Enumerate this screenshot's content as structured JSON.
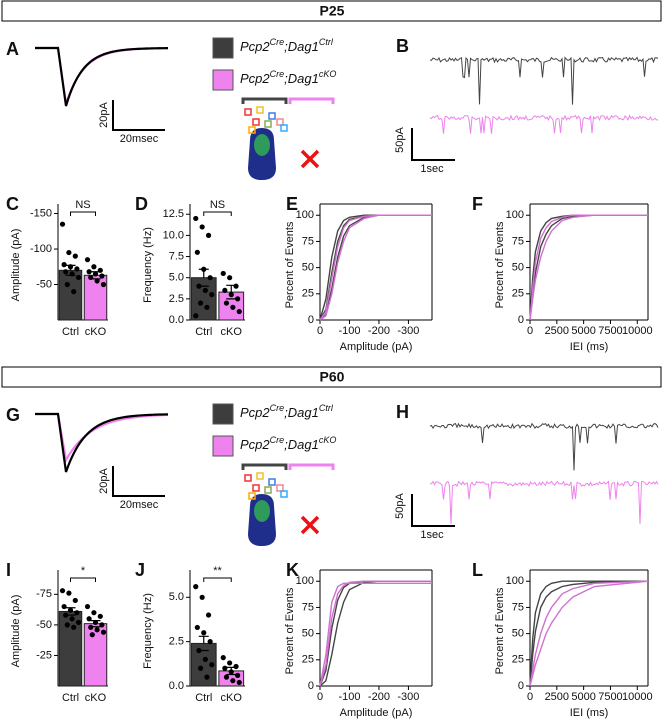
{
  "sections": [
    {
      "title": "P25",
      "trace_panel": "A",
      "noise_panel": "B",
      "trace_scale": [
        "20pA",
        "20msec"
      ],
      "noise_scale": [
        "50pA",
        "1sec"
      ]
    },
    {
      "title": "P60",
      "trace_panel": "G",
      "noise_panel": "H",
      "trace_scale": [
        "20pA",
        "20msec"
      ],
      "noise_scale": [
        "50pA",
        "1sec"
      ]
    }
  ],
  "legend": [
    {
      "parts": [
        "Pcp2",
        "Cre",
        ";Dag1",
        "Ctrl"
      ],
      "color": "#3d3d3d"
    },
    {
      "parts": [
        "Pcp2",
        "Cre",
        ";Dag1",
        "cKO"
      ],
      "color": "#ee82ee"
    }
  ],
  "chart_data": [
    {
      "type": "bar",
      "label": "C",
      "ylabel": "Amplitude (pA)",
      "categories": [
        "Ctrl",
        "cKO"
      ],
      "values": [
        -70,
        -63
      ],
      "errors": [
        7,
        5
      ],
      "colors": [
        "#3d3d3d",
        "#ee82ee"
      ],
      "points": [
        [
          -135,
          -95,
          -90,
          -78,
          -75,
          -72,
          -68,
          -65,
          -60,
          -50,
          -40
        ],
        [
          -85,
          -75,
          -70,
          -68,
          -65,
          -62,
          -60,
          -55,
          -50
        ]
      ],
      "annotation": "NS",
      "ylim": [
        0,
        -155
      ],
      "yticks": [
        -50,
        -100,
        -150
      ]
    },
    {
      "type": "bar",
      "label": "D",
      "ylabel": "Frequency (Hz)",
      "categories": [
        "Ctrl",
        "cKO"
      ],
      "values": [
        5.0,
        3.3
      ],
      "errors": [
        1.0,
        0.8
      ],
      "colors": [
        "#3d3d3d",
        "#ee82ee"
      ],
      "points": [
        [
          12,
          11,
          10,
          8,
          6,
          5,
          4,
          3.5,
          3,
          2,
          1.5,
          0.5
        ],
        [
          5.5,
          5,
          4,
          3.5,
          3,
          2.5,
          2,
          1.5,
          1
        ]
      ],
      "annotation": "NS",
      "ylim": [
        0,
        13
      ],
      "yticks": [
        {
          "value": 0,
          "label": "0.0"
        },
        2.5,
        {
          "value": 5,
          "label": "5.0"
        },
        7.5,
        {
          "value": 10,
          "label": "10.0"
        },
        12.5
      ]
    },
    {
      "type": "line",
      "label": "E",
      "xlabel": "Amplitude (pA)",
      "ylabel": "Percent of Events",
      "x": [
        0,
        -20,
        -40,
        -60,
        -80,
        -100,
        -150,
        -200,
        -300,
        -380
      ],
      "series": [
        {
          "color": "#444444",
          "values": [
            0,
            10,
            45,
            75,
            90,
            96,
            99,
            100,
            100,
            100
          ]
        },
        {
          "color": "#444444",
          "values": [
            0,
            20,
            60,
            85,
            95,
            98,
            100,
            100,
            100,
            100
          ]
        },
        {
          "color": "#444444",
          "values": [
            0,
            5,
            30,
            60,
            80,
            90,
            98,
            100,
            100,
            100
          ]
        },
        {
          "color": "#d070d0",
          "values": [
            0,
            8,
            40,
            70,
            88,
            95,
            99,
            100,
            100,
            100
          ]
        },
        {
          "color": "#d070d0",
          "values": [
            0,
            4,
            25,
            55,
            75,
            88,
            97,
            100,
            100,
            100
          ]
        }
      ],
      "xlim": [
        0,
        -380
      ],
      "xticks": [
        0,
        -100,
        -200,
        -300
      ],
      "ylim": [
        0,
        105
      ],
      "yticks": [
        0,
        25,
        50,
        75,
        100
      ]
    },
    {
      "type": "line",
      "label": "F",
      "xlabel": "IEI (ms)",
      "ylabel": "Percent of Events",
      "x": [
        0,
        250,
        500,
        1000,
        1500,
        2000,
        3000,
        4000,
        6000,
        11000
      ],
      "series": [
        {
          "color": "#444444",
          "values": [
            0,
            40,
            65,
            85,
            93,
            97,
            99,
            100,
            100,
            100
          ]
        },
        {
          "color": "#444444",
          "values": [
            0,
            25,
            45,
            70,
            82,
            90,
            97,
            99,
            100,
            100
          ]
        },
        {
          "color": "#d070d0",
          "values": [
            0,
            20,
            38,
            60,
            75,
            85,
            95,
            98,
            100,
            100
          ]
        },
        {
          "color": "#d070d0",
          "values": [
            0,
            30,
            55,
            78,
            88,
            94,
            98,
            100,
            100,
            100
          ]
        }
      ],
      "xlim": [
        0,
        11000
      ],
      "xticks": [
        0,
        2500,
        5000,
        7500,
        10000
      ],
      "ylim": [
        0,
        105
      ],
      "yticks": [
        0,
        25,
        50,
        75,
        100
      ]
    },
    {
      "type": "bar",
      "label": "I",
      "ylabel": "Amplitude (pA)",
      "categories": [
        "Ctrl",
        "cKO"
      ],
      "values": [
        -61,
        -51
      ],
      "errors": [
        3,
        2.5
      ],
      "colors": [
        "#3d3d3d",
        "#ee82ee"
      ],
      "points": [
        [
          -78,
          -76,
          -70,
          -65,
          -62,
          -60,
          -58,
          -55,
          -52,
          -50,
          -48
        ],
        [
          -65,
          -60,
          -57,
          -55,
          -52,
          -50,
          -48,
          -46,
          -44,
          -42
        ]
      ],
      "annotation": "*",
      "ylim": [
        0,
        -90
      ],
      "yticks": [
        -25,
        -50,
        -75
      ]
    },
    {
      "type": "bar",
      "label": "J",
      "ylabel": "Frequency (Hz)",
      "categories": [
        "Ctrl",
        "cKO"
      ],
      "values": [
        2.4,
        0.85
      ],
      "errors": [
        0.4,
        0.2
      ],
      "colors": [
        "#3d3d3d",
        "#ee82ee"
      ],
      "points": [
        [
          5.6,
          5,
          4,
          3.3,
          3,
          2.5,
          2,
          1.5,
          1.2,
          1,
          0.5
        ],
        [
          1.6,
          1.3,
          1.1,
          1,
          0.8,
          0.6,
          0.5,
          0.3,
          0.2
        ]
      ],
      "annotation": "**",
      "ylim": [
        0,
        6.2
      ],
      "yticks": [
        {
          "value": 0,
          "label": "0.0"
        },
        2.5,
        {
          "value": 5,
          "label": "5.0"
        }
      ]
    },
    {
      "type": "line",
      "label": "K",
      "xlabel": "Amplitude (pA)",
      "ylabel": "Percent of Events",
      "x": [
        0,
        -20,
        -40,
        -60,
        -80,
        -100,
        -150,
        -200,
        -300,
        -380
      ],
      "series": [
        {
          "color": "#444444",
          "values": [
            0,
            15,
            55,
            82,
            94,
            98,
            100,
            100,
            100,
            100
          ]
        },
        {
          "color": "#444444",
          "values": [
            0,
            5,
            30,
            60,
            80,
            92,
            99,
            100,
            100,
            100
          ]
        },
        {
          "color": "#d070d0",
          "values": [
            0,
            30,
            80,
            95,
            98,
            98,
            98,
            98,
            98,
            98
          ]
        },
        {
          "color": "#d070d0",
          "values": [
            0,
            20,
            65,
            88,
            96,
            99,
            100,
            100,
            100,
            100
          ]
        }
      ],
      "xlim": [
        0,
        -380
      ],
      "xticks": [
        0,
        -100,
        -200,
        -300
      ],
      "ylim": [
        0,
        105
      ],
      "yticks": [
        0,
        25,
        50,
        75,
        100
      ]
    },
    {
      "type": "line",
      "label": "L",
      "xlabel": "IEI (ms)",
      "ylabel": "Percent of Events",
      "x": [
        0,
        250,
        500,
        1000,
        1500,
        2000,
        3000,
        4000,
        6000,
        11000
      ],
      "series": [
        {
          "color": "#444444",
          "values": [
            0,
            45,
            70,
            88,
            95,
            98,
            100,
            100,
            100,
            100
          ]
        },
        {
          "color": "#444444",
          "values": [
            0,
            30,
            52,
            75,
            85,
            90,
            95,
            97,
            99,
            100
          ]
        },
        {
          "color": "#d070d0",
          "values": [
            0,
            10,
            20,
            35,
            50,
            60,
            75,
            85,
            95,
            100
          ]
        },
        {
          "color": "#d070d0",
          "values": [
            0,
            15,
            30,
            50,
            65,
            75,
            88,
            93,
            98,
            100
          ]
        }
      ],
      "xlim": [
        0,
        11000
      ],
      "xticks": [
        0,
        2500,
        5000,
        7500,
        10000
      ],
      "ylim": [
        0,
        105
      ],
      "yticks": [
        0,
        25,
        50,
        75,
        100
      ]
    }
  ]
}
